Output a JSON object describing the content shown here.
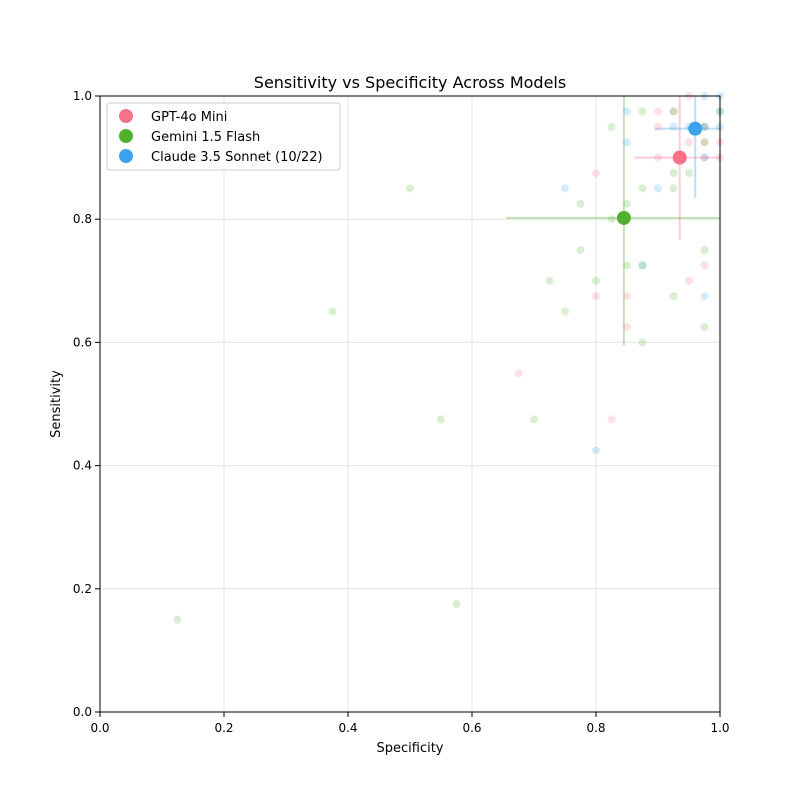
{
  "chart_data": {
    "type": "scatter",
    "title": "Sensitivity vs Specificity Across Models",
    "xlabel": "Specificity",
    "ylabel": "Sensitivity",
    "xlim": [
      0,
      1
    ],
    "ylim": [
      0,
      1
    ],
    "xticks": [
      "0.0",
      "0.2",
      "0.4",
      "0.6",
      "0.8",
      "1.0"
    ],
    "yticks": [
      "0.0",
      "0.2",
      "0.4",
      "0.6",
      "0.8",
      "1.0"
    ],
    "grid": true,
    "legend_position": "top-left",
    "series": [
      {
        "name": "GPT-4o Mini",
        "color": "#f77189",
        "mean": {
          "x": 0.935,
          "y": 0.9
        },
        "error_x": [
          0.862,
          1.0
        ],
        "error_y": [
          0.766,
          1.0
        ],
        "points": [
          [
            0.8,
            0.875
          ],
          [
            0.9,
            0.975
          ],
          [
            0.925,
            0.975
          ],
          [
            0.9,
            0.95
          ],
          [
            0.95,
            0.925
          ],
          [
            0.9,
            0.9
          ],
          [
            0.975,
            0.725
          ],
          [
            0.95,
            0.7
          ],
          [
            0.8,
            0.675
          ],
          [
            0.85,
            0.675
          ],
          [
            0.85,
            0.625
          ],
          [
            0.675,
            0.55
          ],
          [
            0.825,
            0.475
          ],
          [
            0.95,
            1.0
          ],
          [
            0.975,
            0.9
          ],
          [
            1.0,
            0.9
          ],
          [
            0.975,
            0.925
          ],
          [
            0.975,
            0.95
          ],
          [
            1.0,
            0.925
          ]
        ]
      },
      {
        "name": "Gemini 1.5 Flash",
        "color": "#50b131",
        "mean": {
          "x": 0.845,
          "y": 0.802
        },
        "error_x": [
          0.655,
          1.0
        ],
        "error_y": [
          0.595,
          1.0
        ],
        "points": [
          [
            0.125,
            0.15
          ],
          [
            0.375,
            0.65
          ],
          [
            0.5,
            0.85
          ],
          [
            0.55,
            0.475
          ],
          [
            0.575,
            0.175
          ],
          [
            0.7,
            0.475
          ],
          [
            0.725,
            0.7
          ],
          [
            0.75,
            0.65
          ],
          [
            0.775,
            0.825
          ],
          [
            0.775,
            0.75
          ],
          [
            0.8,
            0.7
          ],
          [
            0.825,
            0.8
          ],
          [
            0.85,
            0.825
          ],
          [
            0.85,
            0.725
          ],
          [
            0.875,
            0.85
          ],
          [
            0.875,
            0.725
          ],
          [
            0.875,
            0.6
          ],
          [
            0.925,
            0.875
          ],
          [
            0.925,
            0.85
          ],
          [
            0.925,
            0.675
          ],
          [
            0.95,
            0.875
          ],
          [
            0.975,
            0.75
          ],
          [
            0.975,
            0.625
          ],
          [
            0.825,
            0.95
          ],
          [
            0.875,
            0.975
          ],
          [
            0.925,
            0.975
          ],
          [
            0.975,
            0.925
          ],
          [
            1.0,
            0.975
          ],
          [
            0.975,
            0.95
          ]
        ]
      },
      {
        "name": "Claude 3.5 Sonnet (10/22)",
        "color": "#3ba3ec",
        "mean": {
          "x": 0.96,
          "y": 0.947
        },
        "error_x": [
          0.895,
          1.0
        ],
        "error_y": [
          0.835,
          1.0
        ],
        "points": [
          [
            0.75,
            0.85
          ],
          [
            0.8,
            0.425
          ],
          [
            0.85,
            0.975
          ],
          [
            0.85,
            0.925
          ],
          [
            0.9,
            0.85
          ],
          [
            0.975,
            0.675
          ],
          [
            0.925,
            0.95
          ],
          [
            0.95,
            0.95
          ],
          [
            0.975,
            1.0
          ],
          [
            1.0,
            0.95
          ],
          [
            0.875,
            0.725
          ],
          [
            0.975,
            0.9
          ],
          [
            1.0,
            1.0
          ],
          [
            0.975,
            0.95
          ],
          [
            1.0,
            0.975
          ]
        ]
      }
    ]
  }
}
